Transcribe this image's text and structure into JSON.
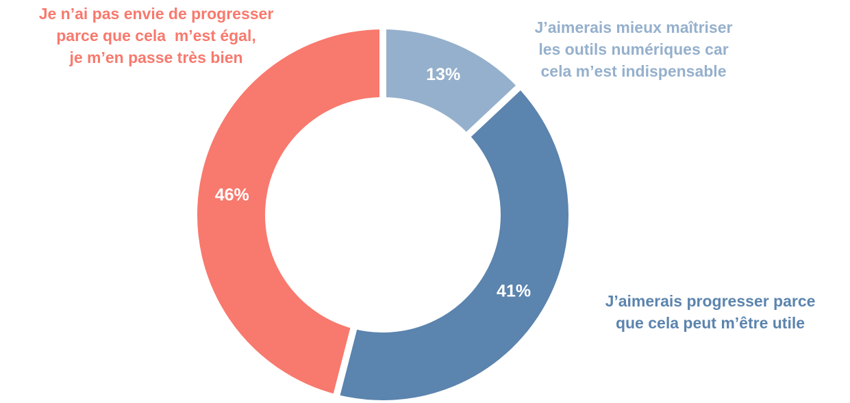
{
  "chart_data": {
    "type": "donut",
    "categories": [
      [
        "J’aimerais mieux maîtriser",
        "les outils numériques car",
        "cela m’est indispensable"
      ],
      [
        "J’aimerais progresser parce",
        "que cela peut m’être utile"
      ],
      [
        "Je n’ai pas envie de progresser",
        "parce que cela  m’est égal,",
        "je m’en passe très bien"
      ]
    ],
    "values": [
      13,
      41,
      46
    ],
    "value_labels": [
      "13%",
      "41%",
      "46%"
    ],
    "colors": [
      "#95b0cc",
      "#5b84ae",
      "#f8796d"
    ]
  }
}
